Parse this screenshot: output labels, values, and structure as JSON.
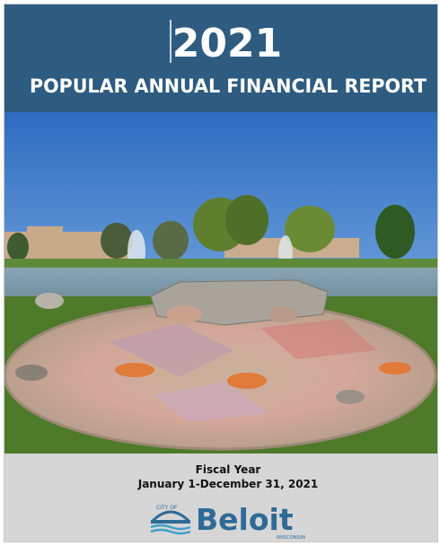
{
  "header": {
    "year": "2021",
    "title": "POPULAR ANNUAL FINANCIAL REPORT"
  },
  "footer": {
    "fiscal_label": "Fiscal Year",
    "period": "January 1-December 31, 2021"
  },
  "logo": {
    "prefix": "CITY OF",
    "name": "Beloit",
    "state": "WISCONSIN"
  }
}
